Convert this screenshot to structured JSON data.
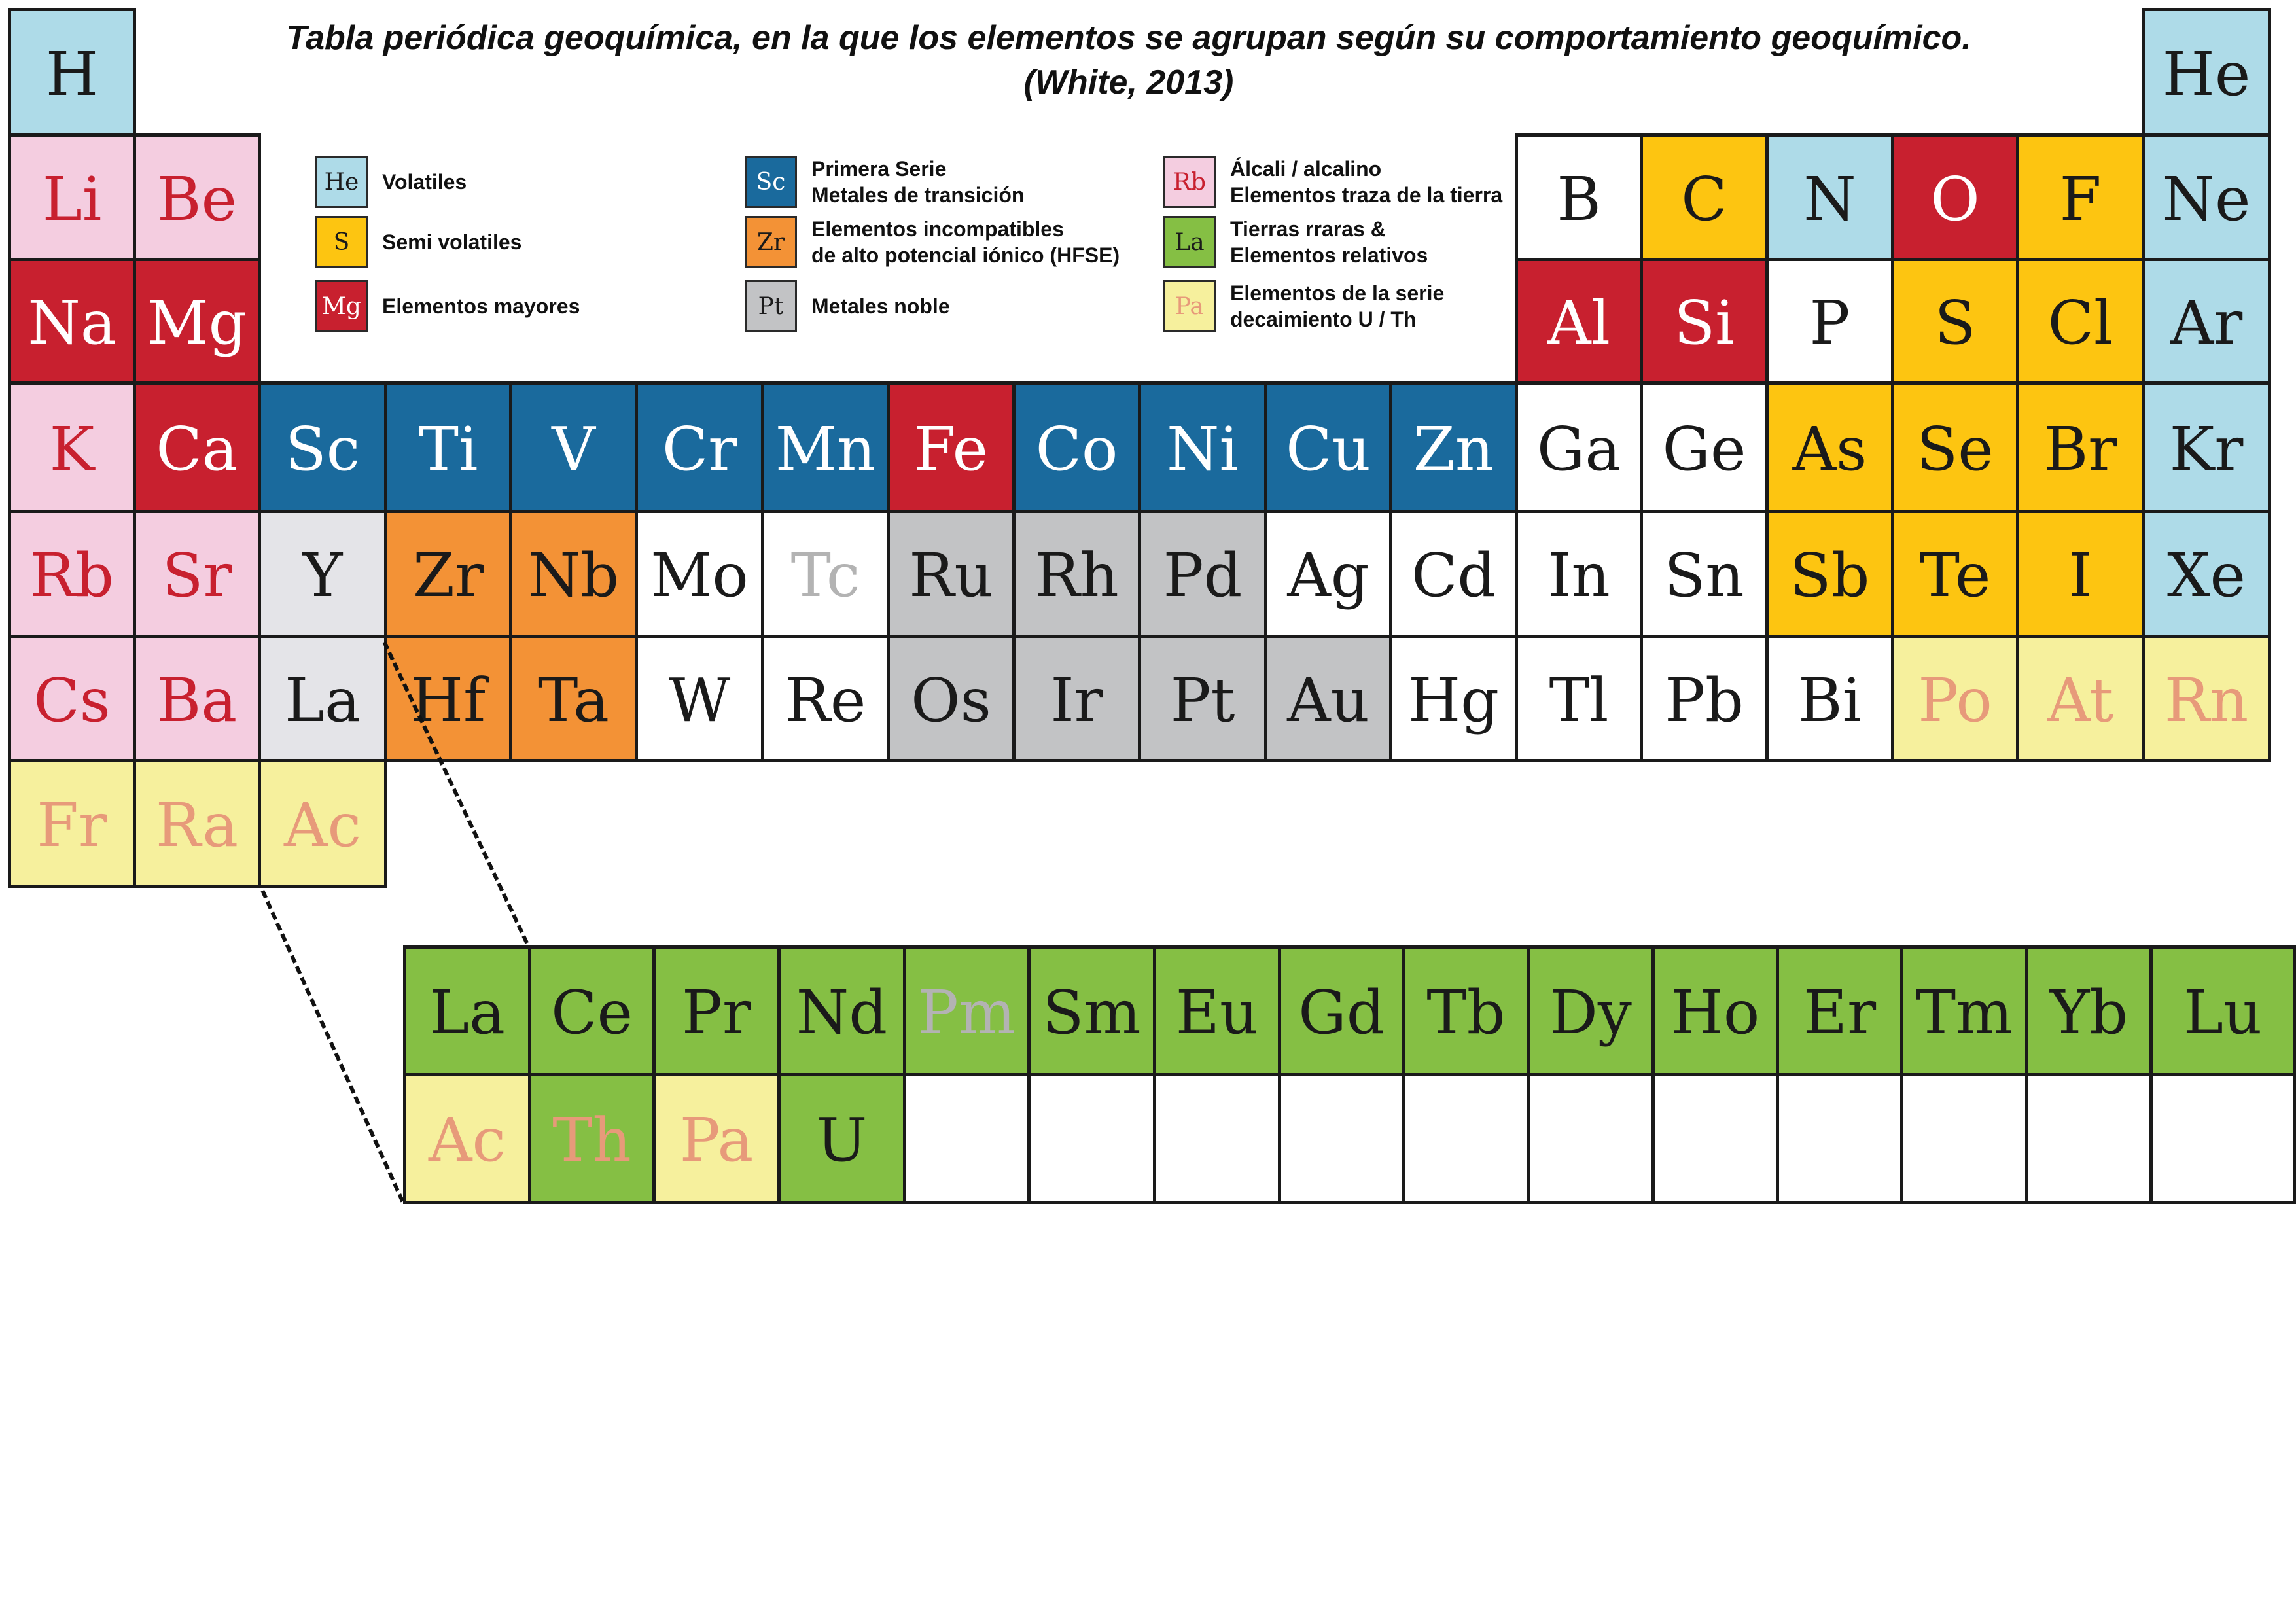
{
  "title": {
    "line1": "Tabla periódica geoquímica, en la que los elementos se agrupan según su   comportamiento geoquímico.",
    "line2": "(White, 2013)"
  },
  "colors": {
    "volatile": "#aedbe8",
    "semivolatile": "#fdc511",
    "major": "#c8202f",
    "transition": "#1a6a9d",
    "hfse": "#f39236",
    "noble": "#c2c3c5",
    "alkali": "#f4cde0",
    "ree": "#85bf44",
    "decay": "#f6f09d",
    "white": "#ffffff",
    "palegray": "#e4e4e8"
  },
  "text_colors": {
    "dark": "#1a1a1a",
    "white": "#ffffff",
    "red": "#c8202f",
    "salmon": "#e79a7a",
    "gray": "#b3b3b3"
  },
  "legend": [
    {
      "symbol": "He",
      "group": "volatile",
      "symcolor": "dark",
      "lines": [
        "Volatiles"
      ]
    },
    {
      "symbol": "S",
      "group": "semivolatile",
      "symcolor": "dark",
      "lines": [
        "Semi volatiles"
      ]
    },
    {
      "symbol": "Mg",
      "group": "major",
      "symcolor": "white",
      "lines": [
        "Elementos mayores"
      ]
    },
    {
      "symbol": "Sc",
      "group": "transition",
      "symcolor": "white",
      "lines": [
        "Primera Serie",
        "Metales de transición"
      ]
    },
    {
      "symbol": "Zr",
      "group": "hfse",
      "symcolor": "dark",
      "lines": [
        "Elementos incompatibles",
        "de alto potencial iónico (HFSE)"
      ]
    },
    {
      "symbol": "Pt",
      "group": "noble",
      "symcolor": "dark",
      "lines": [
        "Metales noble"
      ]
    },
    {
      "symbol": "Rb",
      "group": "alkali",
      "symcolor": "red",
      "lines": [
        "Álcali / alcalino",
        "Elementos traza de la tierra"
      ]
    },
    {
      "symbol": "La",
      "group": "ree",
      "symcolor": "dark",
      "lines": [
        "Tierras rraras &",
        "Elementos relativos"
      ]
    },
    {
      "symbol": "Pa",
      "group": "decay",
      "symcolor": "salmon",
      "lines": [
        "Elementos de la serie",
        "decaimiento U / Th"
      ]
    }
  ],
  "elements": [
    {
      "s": "H",
      "p": 1,
      "g": 1,
      "c": "volatile",
      "t": "dark"
    },
    {
      "s": "He",
      "p": 1,
      "g": 18,
      "c": "volatile",
      "t": "dark"
    },
    {
      "s": "Li",
      "p": 2,
      "g": 1,
      "c": "alkali",
      "t": "red"
    },
    {
      "s": "Be",
      "p": 2,
      "g": 2,
      "c": "alkali",
      "t": "red"
    },
    {
      "s": "B",
      "p": 2,
      "g": 13,
      "c": "white",
      "t": "dark"
    },
    {
      "s": "C",
      "p": 2,
      "g": 14,
      "c": "semivolatile",
      "t": "dark"
    },
    {
      "s": "N",
      "p": 2,
      "g": 15,
      "c": "volatile",
      "t": "dark"
    },
    {
      "s": "O",
      "p": 2,
      "g": 16,
      "c": "major",
      "t": "white"
    },
    {
      "s": "F",
      "p": 2,
      "g": 17,
      "c": "semivolatile",
      "t": "dark"
    },
    {
      "s": "Ne",
      "p": 2,
      "g": 18,
      "c": "volatile",
      "t": "dark"
    },
    {
      "s": "Na",
      "p": 3,
      "g": 1,
      "c": "major",
      "t": "white"
    },
    {
      "s": "Mg",
      "p": 3,
      "g": 2,
      "c": "major",
      "t": "white"
    },
    {
      "s": "Al",
      "p": 3,
      "g": 13,
      "c": "major",
      "t": "white"
    },
    {
      "s": "Si",
      "p": 3,
      "g": 14,
      "c": "major",
      "t": "white"
    },
    {
      "s": "P",
      "p": 3,
      "g": 15,
      "c": "white",
      "t": "dark"
    },
    {
      "s": "S",
      "p": 3,
      "g": 16,
      "c": "semivolatile",
      "t": "dark"
    },
    {
      "s": "Cl",
      "p": 3,
      "g": 17,
      "c": "semivolatile",
      "t": "dark"
    },
    {
      "s": "Ar",
      "p": 3,
      "g": 18,
      "c": "volatile",
      "t": "dark"
    },
    {
      "s": "K",
      "p": 4,
      "g": 1,
      "c": "alkali",
      "t": "red"
    },
    {
      "s": "Ca",
      "p": 4,
      "g": 2,
      "c": "major",
      "t": "white"
    },
    {
      "s": "Sc",
      "p": 4,
      "g": 3,
      "c": "transition",
      "t": "white"
    },
    {
      "s": "Ti",
      "p": 4,
      "g": 4,
      "c": "transition",
      "t": "white"
    },
    {
      "s": "V",
      "p": 4,
      "g": 5,
      "c": "transition",
      "t": "white"
    },
    {
      "s": "Cr",
      "p": 4,
      "g": 6,
      "c": "transition",
      "t": "white"
    },
    {
      "s": "Mn",
      "p": 4,
      "g": 7,
      "c": "transition",
      "t": "white"
    },
    {
      "s": "Fe",
      "p": 4,
      "g": 8,
      "c": "major",
      "t": "white"
    },
    {
      "s": "Co",
      "p": 4,
      "g": 9,
      "c": "transition",
      "t": "white"
    },
    {
      "s": "Ni",
      "p": 4,
      "g": 10,
      "c": "transition",
      "t": "white"
    },
    {
      "s": "Cu",
      "p": 4,
      "g": 11,
      "c": "transition",
      "t": "white"
    },
    {
      "s": "Zn",
      "p": 4,
      "g": 12,
      "c": "transition",
      "t": "white"
    },
    {
      "s": "Ga",
      "p": 4,
      "g": 13,
      "c": "white",
      "t": "dark"
    },
    {
      "s": "Ge",
      "p": 4,
      "g": 14,
      "c": "white",
      "t": "dark"
    },
    {
      "s": "As",
      "p": 4,
      "g": 15,
      "c": "semivolatile",
      "t": "dark"
    },
    {
      "s": "Se",
      "p": 4,
      "g": 16,
      "c": "semivolatile",
      "t": "dark"
    },
    {
      "s": "Br",
      "p": 4,
      "g": 17,
      "c": "semivolatile",
      "t": "dark"
    },
    {
      "s": "Kr",
      "p": 4,
      "g": 18,
      "c": "volatile",
      "t": "dark"
    },
    {
      "s": "Rb",
      "p": 5,
      "g": 1,
      "c": "alkali",
      "t": "red"
    },
    {
      "s": "Sr",
      "p": 5,
      "g": 2,
      "c": "alkali",
      "t": "red"
    },
    {
      "s": "Y",
      "p": 5,
      "g": 3,
      "c": "palegray",
      "t": "dark"
    },
    {
      "s": "Zr",
      "p": 5,
      "g": 4,
      "c": "hfse",
      "t": "dark"
    },
    {
      "s": "Nb",
      "p": 5,
      "g": 5,
      "c": "hfse",
      "t": "dark"
    },
    {
      "s": "Mo",
      "p": 5,
      "g": 6,
      "c": "white",
      "t": "dark"
    },
    {
      "s": "Tc",
      "p": 5,
      "g": 7,
      "c": "white",
      "t": "gray"
    },
    {
      "s": "Ru",
      "p": 5,
      "g": 8,
      "c": "noble",
      "t": "dark"
    },
    {
      "s": "Rh",
      "p": 5,
      "g": 9,
      "c": "noble",
      "t": "dark"
    },
    {
      "s": "Pd",
      "p": 5,
      "g": 10,
      "c": "noble",
      "t": "dark"
    },
    {
      "s": "Ag",
      "p": 5,
      "g": 11,
      "c": "white",
      "t": "dark"
    },
    {
      "s": "Cd",
      "p": 5,
      "g": 12,
      "c": "white",
      "t": "dark"
    },
    {
      "s": "In",
      "p": 5,
      "g": 13,
      "c": "white",
      "t": "dark"
    },
    {
      "s": "Sn",
      "p": 5,
      "g": 14,
      "c": "white",
      "t": "dark"
    },
    {
      "s": "Sb",
      "p": 5,
      "g": 15,
      "c": "semivolatile",
      "t": "dark"
    },
    {
      "s": "Te",
      "p": 5,
      "g": 16,
      "c": "semivolatile",
      "t": "dark"
    },
    {
      "s": "I",
      "p": 5,
      "g": 17,
      "c": "semivolatile",
      "t": "dark"
    },
    {
      "s": "Xe",
      "p": 5,
      "g": 18,
      "c": "volatile",
      "t": "dark"
    },
    {
      "s": "Cs",
      "p": 6,
      "g": 1,
      "c": "alkali",
      "t": "red"
    },
    {
      "s": "Ba",
      "p": 6,
      "g": 2,
      "c": "alkali",
      "t": "red"
    },
    {
      "s": "La",
      "p": 6,
      "g": 3,
      "c": "palegray",
      "t": "dark"
    },
    {
      "s": "Hf",
      "p": 6,
      "g": 4,
      "c": "hfse",
      "t": "dark"
    },
    {
      "s": "Ta",
      "p": 6,
      "g": 5,
      "c": "hfse",
      "t": "dark"
    },
    {
      "s": "W",
      "p": 6,
      "g": 6,
      "c": "white",
      "t": "dark"
    },
    {
      "s": "Re",
      "p": 6,
      "g": 7,
      "c": "white",
      "t": "dark"
    },
    {
      "s": "Os",
      "p": 6,
      "g": 8,
      "c": "noble",
      "t": "dark"
    },
    {
      "s": "Ir",
      "p": 6,
      "g": 9,
      "c": "noble",
      "t": "dark"
    },
    {
      "s": "Pt",
      "p": 6,
      "g": 10,
      "c": "noble",
      "t": "dark"
    },
    {
      "s": "Au",
      "p": 6,
      "g": 11,
      "c": "noble",
      "t": "dark"
    },
    {
      "s": "Hg",
      "p": 6,
      "g": 12,
      "c": "white",
      "t": "dark"
    },
    {
      "s": "Tl",
      "p": 6,
      "g": 13,
      "c": "white",
      "t": "dark"
    },
    {
      "s": "Pb",
      "p": 6,
      "g": 14,
      "c": "white",
      "t": "dark"
    },
    {
      "s": "Bi",
      "p": 6,
      "g": 15,
      "c": "white",
      "t": "dark"
    },
    {
      "s": "Po",
      "p": 6,
      "g": 16,
      "c": "decay",
      "t": "salmon"
    },
    {
      "s": "At",
      "p": 6,
      "g": 17,
      "c": "decay",
      "t": "salmon"
    },
    {
      "s": "Rn",
      "p": 6,
      "g": 18,
      "c": "decay",
      "t": "salmon"
    },
    {
      "s": "Fr",
      "p": 7,
      "g": 1,
      "c": "decay",
      "t": "salmon"
    },
    {
      "s": "Ra",
      "p": 7,
      "g": 2,
      "c": "decay",
      "t": "salmon"
    },
    {
      "s": "Ac",
      "p": 7,
      "g": 3,
      "c": "decay",
      "t": "salmon"
    }
  ],
  "f_block": [
    [
      {
        "s": "La",
        "c": "ree",
        "t": "dark"
      },
      {
        "s": "Ce",
        "c": "ree",
        "t": "dark"
      },
      {
        "s": "Pr",
        "c": "ree",
        "t": "dark"
      },
      {
        "s": "Nd",
        "c": "ree",
        "t": "dark"
      },
      {
        "s": "Pm",
        "c": "ree",
        "t": "gray"
      },
      {
        "s": "Sm",
        "c": "ree",
        "t": "dark"
      },
      {
        "s": "Eu",
        "c": "ree",
        "t": "dark"
      },
      {
        "s": "Gd",
        "c": "ree",
        "t": "dark"
      },
      {
        "s": "Tb",
        "c": "ree",
        "t": "dark"
      },
      {
        "s": "Dy",
        "c": "ree",
        "t": "dark"
      },
      {
        "s": "Ho",
        "c": "ree",
        "t": "dark"
      },
      {
        "s": "Er",
        "c": "ree",
        "t": "dark"
      },
      {
        "s": "Tm",
        "c": "ree",
        "t": "dark"
      },
      {
        "s": "Yb",
        "c": "ree",
        "t": "dark"
      },
      {
        "s": "Lu",
        "c": "ree",
        "t": "dark"
      }
    ],
    [
      {
        "s": "Ac",
        "c": "decay",
        "t": "salmon"
      },
      {
        "s": "Th",
        "c": "ree",
        "t": "salmon"
      },
      {
        "s": "Pa",
        "c": "decay",
        "t": "salmon"
      },
      {
        "s": "U",
        "c": "ree",
        "t": "dark"
      },
      {
        "s": "",
        "c": "white",
        "t": "dark"
      },
      {
        "s": "",
        "c": "white",
        "t": "dark"
      },
      {
        "s": "",
        "c": "white",
        "t": "dark"
      },
      {
        "s": "",
        "c": "white",
        "t": "dark"
      },
      {
        "s": "",
        "c": "white",
        "t": "dark"
      },
      {
        "s": "",
        "c": "white",
        "t": "dark"
      },
      {
        "s": "",
        "c": "white",
        "t": "dark"
      },
      {
        "s": "",
        "c": "white",
        "t": "dark"
      },
      {
        "s": "",
        "c": "white",
        "t": "dark"
      },
      {
        "s": "",
        "c": "white",
        "t": "dark"
      },
      {
        "s": "",
        "c": "white",
        "t": "dark"
      }
    ]
  ]
}
